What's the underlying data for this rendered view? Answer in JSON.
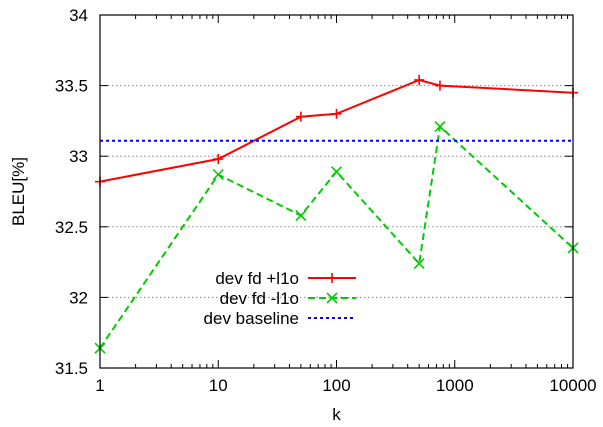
{
  "chart_data": {
    "type": "line",
    "title": "",
    "xlabel": "k",
    "ylabel": "BLEU[%]",
    "x_scale": "log",
    "xlim": [
      1,
      10000
    ],
    "ylim": [
      31.5,
      34
    ],
    "x_ticks": [
      1,
      10,
      100,
      1000,
      10000
    ],
    "x_tick_labels": [
      "1",
      "10",
      "100",
      "1000",
      "10000"
    ],
    "y_ticks": [
      31.5,
      32,
      32.5,
      33,
      33.5,
      34
    ],
    "y_tick_labels": [
      "31.5",
      "32",
      "32.5",
      "33",
      "33.5",
      "34"
    ],
    "grid": "horizontal dotted",
    "legend_position": "bottom-left",
    "series": [
      {
        "name": "dev fd +l1o",
        "color": "#ff0000",
        "line_style": "solid",
        "marker": "plus",
        "x": [
          1,
          10,
          50,
          100,
          500,
          750,
          10000
        ],
        "y": [
          32.82,
          32.98,
          33.28,
          33.3,
          33.54,
          33.5,
          33.45
        ]
      },
      {
        "name": "dev fd -l1o",
        "color": "#00cc00",
        "line_style": "dashed",
        "marker": "x",
        "x": [
          1,
          10,
          50,
          100,
          500,
          750,
          10000
        ],
        "y": [
          31.64,
          32.87,
          32.58,
          32.89,
          32.24,
          33.21,
          32.35
        ]
      },
      {
        "name": "dev baseline",
        "color": "#0000ff",
        "line_style": "dotted",
        "marker": "none",
        "x": [
          1,
          10000
        ],
        "y": [
          33.11,
          33.11
        ]
      }
    ]
  }
}
